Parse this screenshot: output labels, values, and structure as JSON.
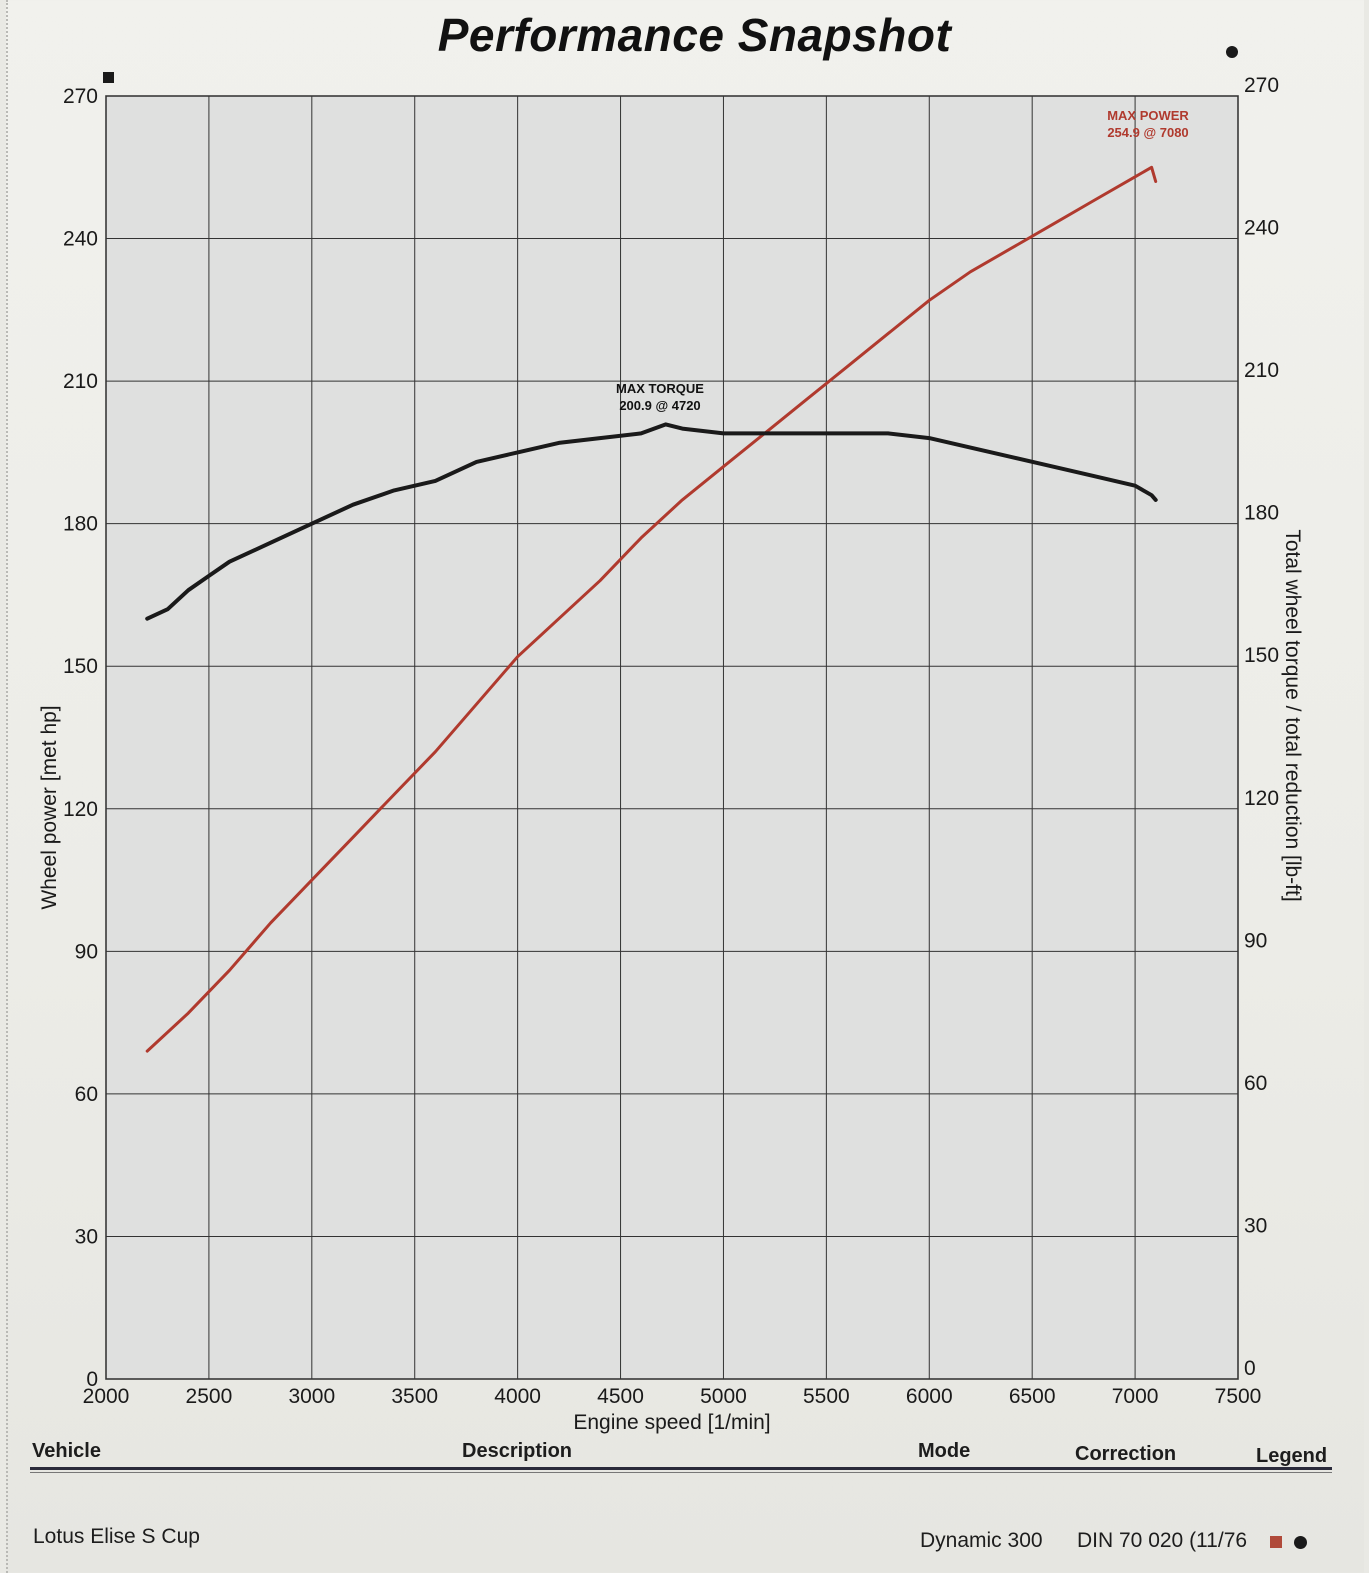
{
  "title": "Performance Snapshot",
  "chart_data": {
    "type": "line",
    "xlabel": "Engine speed [1/min]",
    "ylabel_left": "Wheel power [met hp]",
    "ylabel_right": "Total wheel torque / total reduction [lb-ft]",
    "xlim": [
      2000,
      7500
    ],
    "ylim_left": [
      0,
      270
    ],
    "ylim_right": [
      0,
      270
    ],
    "x_ticks": [
      2000,
      2500,
      3000,
      3500,
      4000,
      4500,
      5000,
      5500,
      6000,
      6500,
      7000,
      7500
    ],
    "y_ticks_left": [
      0,
      30,
      60,
      90,
      120,
      150,
      180,
      210,
      240,
      270
    ],
    "y_ticks_right": [
      0,
      30,
      60,
      90,
      120,
      150,
      180,
      210,
      240,
      270
    ],
    "grid": true,
    "series": [
      {
        "axis": "left",
        "color": "#b03a2e",
        "x": [
          2200,
          2400,
          2600,
          2800,
          3000,
          3200,
          3400,
          3600,
          3800,
          4000,
          4200,
          4400,
          4600,
          4800,
          5000,
          5200,
          5400,
          5600,
          5800,
          6000,
          6200,
          6400,
          6600,
          6800,
          7000,
          7080,
          7100
        ],
        "y": [
          69,
          77,
          86,
          96,
          105,
          114,
          123,
          132,
          142,
          152,
          160,
          168,
          177,
          185,
          192,
          199,
          206,
          213,
          220,
          227,
          233,
          238,
          243,
          248,
          253,
          255,
          252
        ]
      },
      {
        "axis": "right",
        "color": "#1a1a1a",
        "x": [
          2200,
          2300,
          2400,
          2500,
          2600,
          2800,
          3000,
          3200,
          3400,
          3600,
          3800,
          4000,
          4200,
          4400,
          4600,
          4720,
          4800,
          5000,
          5200,
          5400,
          5600,
          5800,
          6000,
          6200,
          6400,
          6600,
          6800,
          7000,
          7080,
          7100
        ],
        "y": [
          160,
          162,
          166,
          169,
          172,
          176,
          180,
          184,
          187,
          189,
          193,
          195,
          197,
          198,
          199,
          200.9,
          200,
          199,
          199,
          199,
          199,
          199,
          198,
          196,
          194,
          192,
          190,
          188,
          186,
          185
        ]
      }
    ],
    "annotations": [
      {
        "label": "MAX TORQUE",
        "value": "200.9 @ 4720",
        "color": "#111111"
      },
      {
        "label": "MAX POWER",
        "value": "254.9 @ 7080",
        "color": "#b03a2e"
      }
    ],
    "markers": {
      "left": "square",
      "right": "circle"
    }
  },
  "table": {
    "headers": {
      "vehicle": "Vehicle",
      "description": "Description",
      "mode": "Mode",
      "correction": "Correction",
      "legend": "Legend"
    },
    "row": {
      "vehicle": "Lotus Elise S Cup",
      "description": "",
      "mode": "Dynamic 300",
      "correction": "DIN 70 020 (11/76"
    }
  }
}
